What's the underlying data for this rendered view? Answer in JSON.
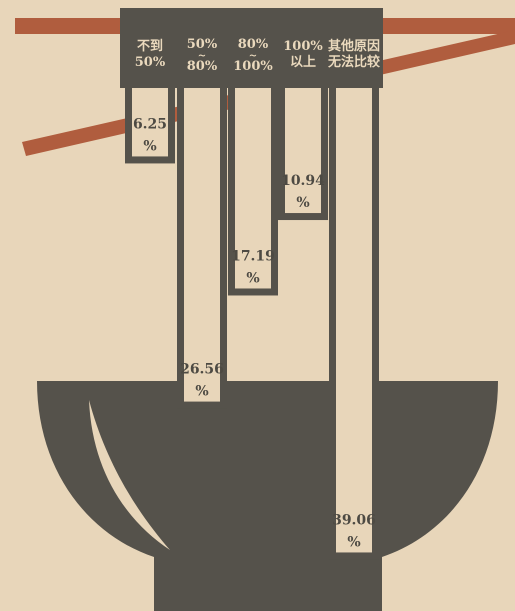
{
  "chart_data": {
    "type": "bar",
    "categories": [
      [
        "不到",
        "50%"
      ],
      [
        "50%",
        "~",
        "80%"
      ],
      [
        "80%",
        "~",
        "100%"
      ],
      [
        "100%",
        "以上"
      ],
      [
        "其他原因",
        "无法比较"
      ]
    ],
    "values": [
      6.25,
      26.56,
      17.19,
      10.94,
      39.06
    ],
    "value_labels": [
      [
        "6.25",
        "%"
      ],
      [
        "26.56",
        "%"
      ],
      [
        "17.19",
        "%"
      ],
      [
        "10.94",
        "%"
      ],
      [
        "39.06",
        "%"
      ]
    ],
    "title": "",
    "xlabel": "",
    "ylabel": "",
    "ylim": [
      0,
      40
    ]
  },
  "colors": {
    "background": "#e8d6ba",
    "bowl": "#55524b",
    "chopsticks": "#b05d3e",
    "bar_fill": "#e8d6ba"
  }
}
